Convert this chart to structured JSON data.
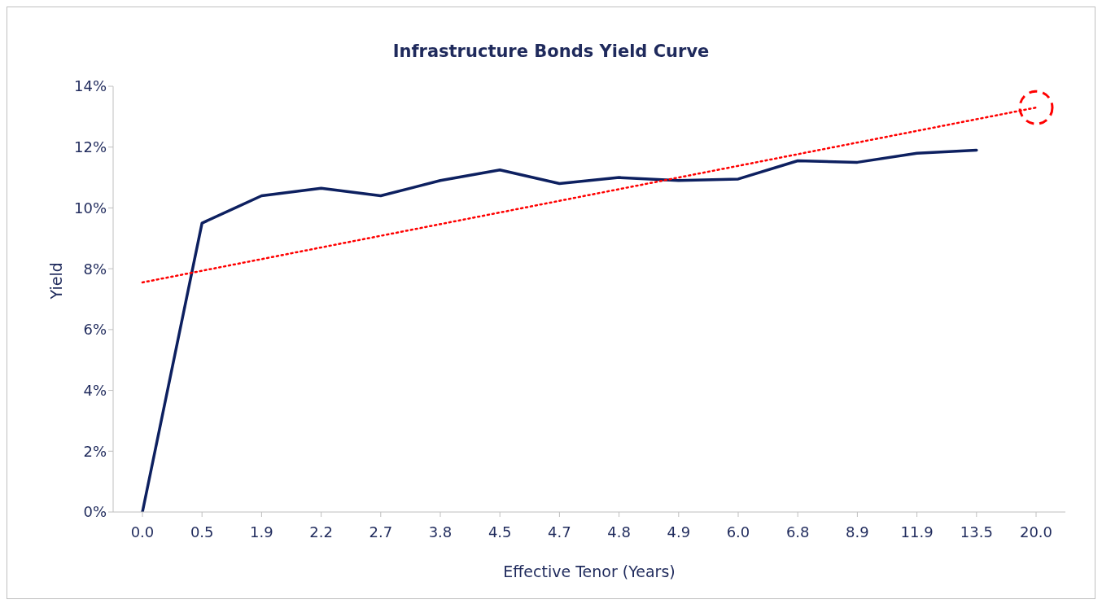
{
  "chart_data": {
    "type": "line",
    "title": "Infrastructure Bonds Yield Curve",
    "xlabel": "Effective Tenor (Years)",
    "ylabel": "Yield",
    "categories": [
      "0.0",
      "0.5",
      "1.9",
      "2.2",
      "2.7",
      "3.8",
      "4.5",
      "4.7",
      "4.8",
      "4.9",
      "6.0",
      "6.8",
      "8.9",
      "11.9",
      "13.5",
      "20.0"
    ],
    "series": [
      {
        "color": "#0d2060",
        "line_style": "solid",
        "values": [
          0,
          9.5,
          10.4,
          10.65,
          10.4,
          10.9,
          11.25,
          10.8,
          11.0,
          10.9,
          10.95,
          11.55,
          11.5,
          11.8,
          11.9,
          null
        ]
      },
      {
        "color": "#ff0000",
        "line_style": "dotted",
        "values": [
          7.55,
          null,
          null,
          null,
          null,
          null,
          null,
          null,
          null,
          null,
          null,
          null,
          null,
          null,
          null,
          13.3
        ]
      }
    ],
    "ylim": [
      0,
      14
    ],
    "yticks": [
      {
        "value": 0,
        "label": "0%"
      },
      {
        "value": 2,
        "label": "2%"
      },
      {
        "value": 4,
        "label": "4%"
      },
      {
        "value": 6,
        "label": "6%"
      },
      {
        "value": 8,
        "label": "8%"
      },
      {
        "value": 10,
        "label": "10%"
      },
      {
        "value": 12,
        "label": "12%"
      },
      {
        "value": 14,
        "label": "14%"
      }
    ],
    "grid": false
  }
}
